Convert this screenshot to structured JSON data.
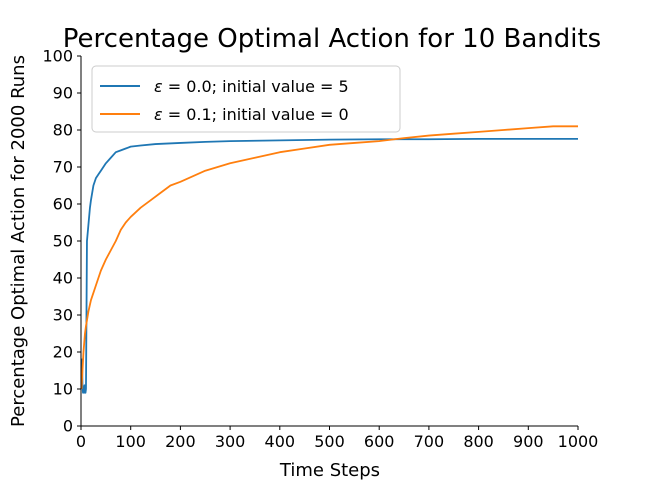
{
  "chart_data": {
    "type": "line",
    "title": "Percentage Optimal Action for 10 Bandits",
    "xlabel": "Time Steps",
    "ylabel": "Percentage Optimal Action for 2000 Runs",
    "xlim": [
      0,
      1000
    ],
    "ylim": [
      0,
      100
    ],
    "xticks": [
      0,
      100,
      200,
      300,
      400,
      500,
      600,
      700,
      800,
      900,
      1000
    ],
    "yticks": [
      0,
      10,
      20,
      30,
      40,
      50,
      60,
      70,
      80,
      90,
      100
    ],
    "grid": false,
    "legend_position": "top-left",
    "series": [
      {
        "name": "ε = 0.0; initial value = 5",
        "legend_parts": {
          "symbol": "ε",
          "text": " = 0.0; initial value = 5"
        },
        "color": "#1f77b4",
        "x": [
          1,
          2,
          3,
          4,
          5,
          6,
          7,
          8,
          9,
          10,
          11,
          12,
          14,
          16,
          18,
          20,
          25,
          30,
          35,
          40,
          50,
          60,
          70,
          80,
          90,
          100,
          120,
          150,
          200,
          250,
          300,
          350,
          400,
          450,
          500,
          600,
          700,
          800,
          900,
          1000
        ],
        "y": [
          10,
          18,
          11,
          9,
          10,
          9,
          11,
          9,
          9,
          10,
          30,
          50,
          53,
          56,
          59,
          61,
          65,
          67,
          68,
          69,
          71,
          72.5,
          74,
          74.5,
          75,
          75.5,
          75.8,
          76.2,
          76.5,
          76.8,
          77,
          77.1,
          77.2,
          77.3,
          77.4,
          77.5,
          77.5,
          77.6,
          77.6,
          77.6
        ]
      },
      {
        "name": "ε = 0.1; initial value = 0",
        "legend_parts": {
          "symbol": "ε",
          "text": " = 0.1; initial value = 0"
        },
        "color": "#ff7f0e",
        "x": [
          1,
          3,
          5,
          8,
          10,
          15,
          20,
          25,
          30,
          40,
          50,
          60,
          70,
          80,
          90,
          100,
          120,
          140,
          160,
          180,
          200,
          250,
          300,
          350,
          400,
          450,
          500,
          550,
          600,
          650,
          700,
          750,
          800,
          850,
          900,
          950,
          1000
        ],
        "y": [
          10,
          15,
          20,
          25,
          27,
          31,
          34,
          36,
          38,
          42,
          45,
          47.5,
          50,
          53,
          55,
          56.5,
          59,
          61,
          63,
          65,
          66,
          69,
          71,
          72.5,
          74,
          75,
          76,
          76.5,
          77,
          77.8,
          78.5,
          79,
          79.5,
          80,
          80.5,
          81,
          81
        ]
      }
    ]
  }
}
